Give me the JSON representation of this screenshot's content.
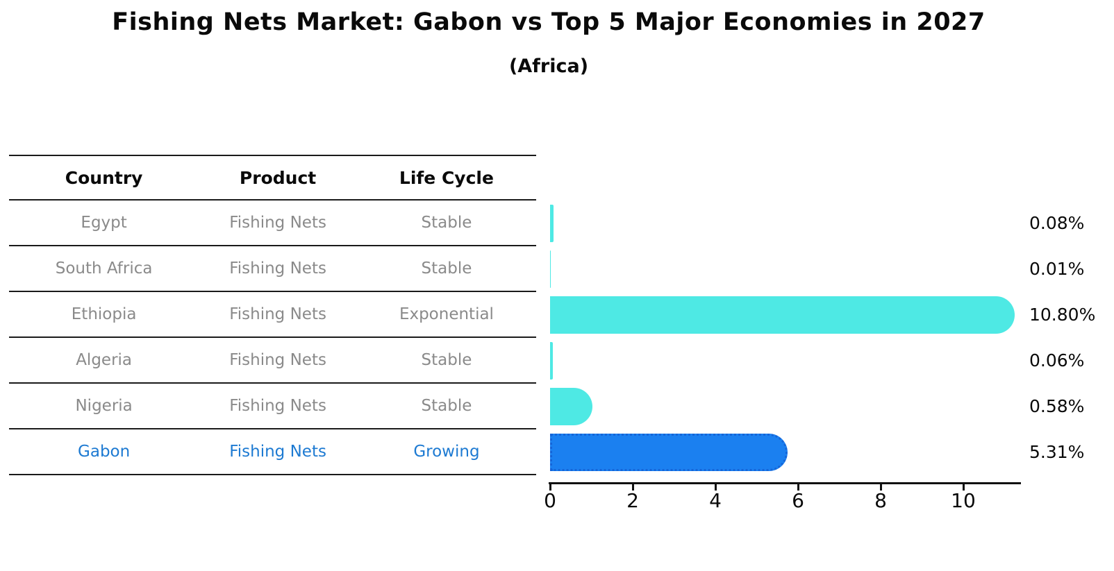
{
  "title": "Fishing Nets Market: Gabon vs Top 5 Major Economies in 2027",
  "subtitle": "(Africa)",
  "table": {
    "columns": [
      "Country",
      "Product",
      "Life Cycle"
    ],
    "rows": [
      {
        "country": "Egypt",
        "product": "Fishing Nets",
        "life_cycle": "Stable",
        "value_label": "0.08%",
        "highlight": false
      },
      {
        "country": "South Africa",
        "product": "Fishing Nets",
        "life_cycle": "Stable",
        "value_label": "0.01%",
        "highlight": false
      },
      {
        "country": "Ethiopia",
        "product": "Fishing Nets",
        "life_cycle": "Exponential",
        "value_label": "10.80%",
        "highlight": false
      },
      {
        "country": "Algeria",
        "product": "Fishing Nets",
        "life_cycle": "Stable",
        "value_label": "0.06%",
        "highlight": false
      },
      {
        "country": "Nigeria",
        "product": "Fishing Nets",
        "life_cycle": "Stable",
        "value_label": "0.58%",
        "highlight": false
      },
      {
        "country": "Gabon",
        "product": "Fishing Nets",
        "life_cycle": "Growing",
        "value_label": "5.31%",
        "highlight": true
      }
    ]
  },
  "chart_data": {
    "type": "bar",
    "orientation": "horizontal",
    "title": "Fishing Nets Market: Gabon vs Top 5 Major Economies in 2027",
    "subtitle": "(Africa)",
    "categories": [
      "Egypt",
      "South Africa",
      "Ethiopia",
      "Algeria",
      "Nigeria",
      "Gabon"
    ],
    "values": [
      0.08,
      0.01,
      10.8,
      0.06,
      0.58,
      5.31
    ],
    "data_labels": [
      "0.08%",
      "0.01%",
      "10.80%",
      "0.06%",
      "0.58%",
      "5.31%"
    ],
    "x_ticks": [
      0,
      2,
      4,
      6,
      8,
      10
    ],
    "xlim": [
      0,
      11.4
    ],
    "grid": false,
    "legend": false,
    "highlight_index": 5
  },
  "colors": {
    "bar_default": "#4ee9e4",
    "bar_highlight": "#1b80f0",
    "bar_highlight_border": "#1565d8",
    "highlight_text": "#1d7ad2",
    "row_text": "#8a8a8a",
    "header_text": "#0a0a0a"
  }
}
